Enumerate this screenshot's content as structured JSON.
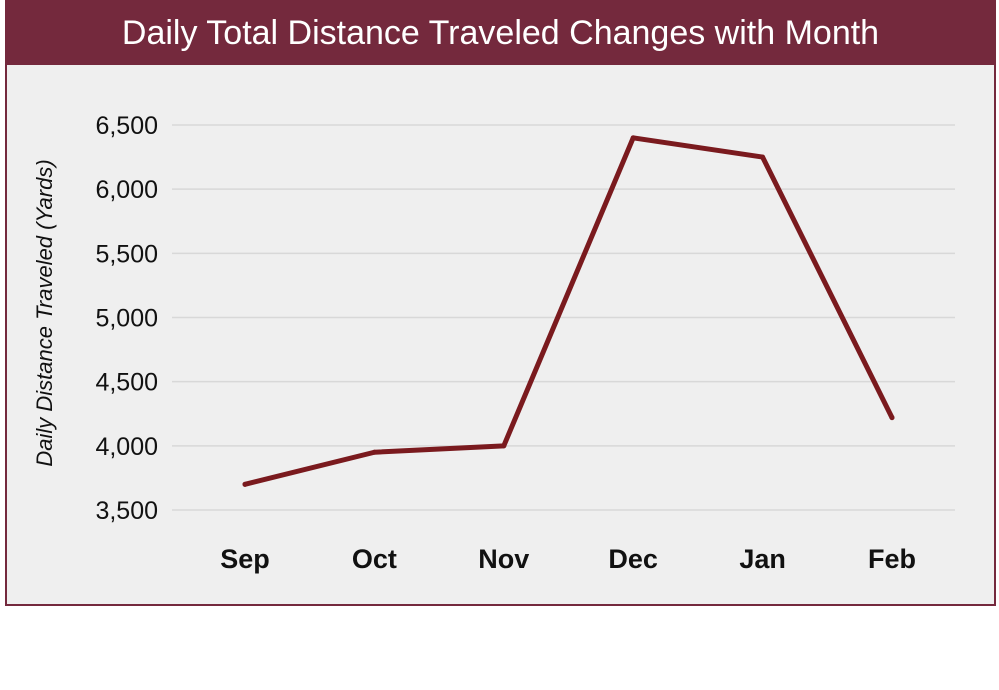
{
  "chart_data": {
    "type": "line",
    "title": "Daily Total Distance Traveled Changes with Month",
    "xlabel": "",
    "ylabel": "Daily Distance Traveled (Yards)",
    "categories": [
      "Sep",
      "Oct",
      "Nov",
      "Dec",
      "Jan",
      "Feb"
    ],
    "series": [
      {
        "values": [
          3700,
          3950,
          4000,
          6400,
          6250,
          4220
        ]
      }
    ],
    "ylim": [
      3500,
      6500
    ],
    "yticks": [
      3500,
      4000,
      4500,
      5000,
      5500,
      6000,
      6500
    ],
    "ytick_labels": [
      "3,500",
      "4,000",
      "4,500",
      "5,000",
      "5,500",
      "6,000",
      "6,500"
    ],
    "grid": true,
    "line_color": "#7a1a1e",
    "title_bar_color": "#74293d"
  }
}
